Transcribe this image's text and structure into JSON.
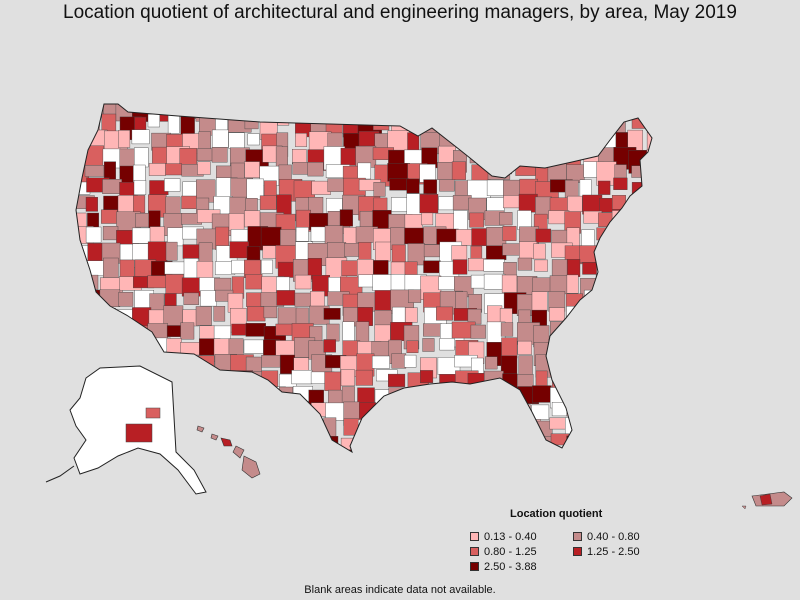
{
  "title": "Location quotient of architectural and engineering managers, by area, May 2019",
  "legend": {
    "title": "Location quotient",
    "items": [
      {
        "label": "0.13 - 0.40",
        "color": "#ffb6b6"
      },
      {
        "label": "0.40 - 0.80",
        "color": "#c48b8b"
      },
      {
        "label": "0.80 - 1.25",
        "color": "#d9605f"
      },
      {
        "label": "1.25 - 2.50",
        "color": "#b81f24"
      },
      {
        "label": "2.50 - 3.88",
        "color": "#750000"
      }
    ]
  },
  "footnote": "Blank areas indicate data not available.",
  "colors": {
    "background": "#e0e0e0",
    "no_data": "#ffffff",
    "border": "#333333"
  }
}
